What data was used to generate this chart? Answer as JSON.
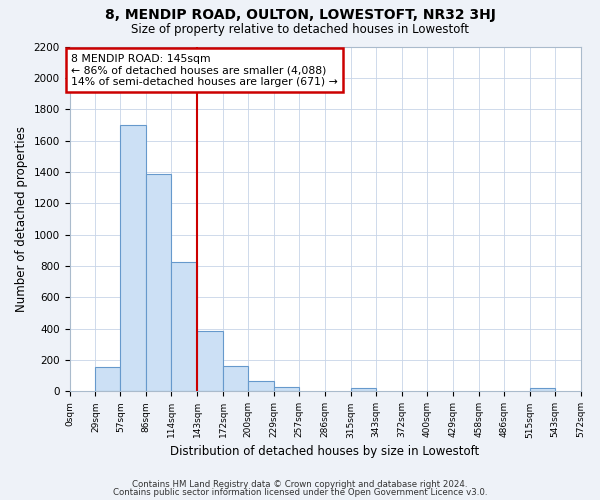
{
  "title": "8, MENDIP ROAD, OULTON, LOWESTOFT, NR32 3HJ",
  "subtitle": "Size of property relative to detached houses in Lowestoft",
  "xlabel": "Distribution of detached houses by size in Lowestoft",
  "ylabel": "Number of detached properties",
  "bin_edges": [
    0,
    29,
    57,
    86,
    114,
    143,
    172,
    200,
    229,
    257,
    286,
    315,
    343,
    372,
    400,
    429,
    458,
    486,
    515,
    543,
    572
  ],
  "bin_labels": [
    "0sqm",
    "29sqm",
    "57sqm",
    "86sqm",
    "114sqm",
    "143sqm",
    "172sqm",
    "200sqm",
    "229sqm",
    "257sqm",
    "286sqm",
    "315sqm",
    "343sqm",
    "372sqm",
    "400sqm",
    "429sqm",
    "458sqm",
    "486sqm",
    "515sqm",
    "543sqm",
    "572sqm"
  ],
  "bar_heights": [
    0,
    155,
    1700,
    1390,
    825,
    385,
    165,
    65,
    30,
    0,
    0,
    25,
    0,
    0,
    0,
    0,
    0,
    0,
    20,
    0
  ],
  "bar_color": "#cce0f5",
  "bar_edge_color": "#6699cc",
  "property_line_x": 143,
  "property_line_color": "#cc0000",
  "annotation_title": "8 MENDIP ROAD: 145sqm",
  "annotation_line1": "← 86% of detached houses are smaller (4,088)",
  "annotation_line2": "14% of semi-detached houses are larger (671) →",
  "annotation_box_color": "#cc0000",
  "ylim": [
    0,
    2200
  ],
  "yticks": [
    0,
    200,
    400,
    600,
    800,
    1000,
    1200,
    1400,
    1600,
    1800,
    2000,
    2200
  ],
  "footer_line1": "Contains HM Land Registry data © Crown copyright and database right 2024.",
  "footer_line2": "Contains public sector information licensed under the Open Government Licence v3.0.",
  "background_color": "#eef2f8",
  "plot_background_color": "#ffffff",
  "grid_color": "#c8d4e8"
}
